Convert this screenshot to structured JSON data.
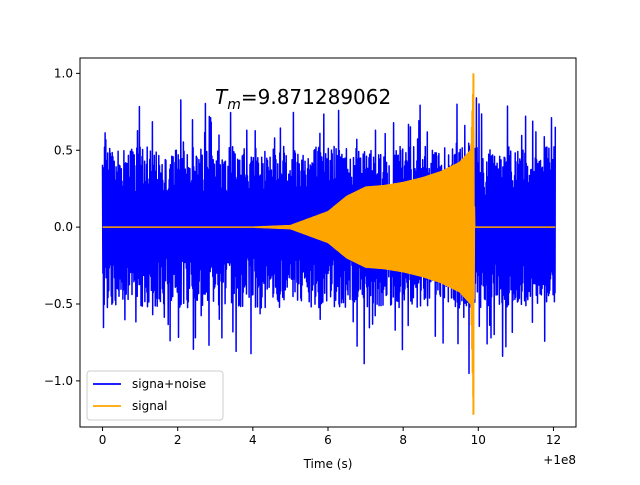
{
  "chart_data": {
    "type": "line",
    "title": "",
    "annotation": {
      "symbol": "T",
      "subscript": "m",
      "text": "=9.871289062"
    },
    "xlabel": "Time (s)",
    "ylabel": "",
    "x_offset_label": "+1e8",
    "xlim": [
      -0.6,
      12.6
    ],
    "ylim": [
      -1.3,
      1.1
    ],
    "x_ticks": [
      0,
      2,
      4,
      6,
      8,
      10,
      12
    ],
    "x_tick_labels": [
      "0",
      "2",
      "4",
      "6",
      "8",
      "10",
      "12"
    ],
    "y_ticks": [
      1.0,
      0.5,
      0.0,
      -0.5,
      -1.0
    ],
    "y_tick_labels": [
      "1.0",
      "0.5",
      "0.0",
      "−0.5",
      "−1.0"
    ],
    "grid": false,
    "legend": {
      "placement": "lower-left"
    },
    "series": [
      {
        "name": "signa+noise",
        "color": "#0000ff",
        "x_range": [
          0,
          12.05
        ],
        "envelope": {
          "x": [
            0,
            1,
            2,
            3,
            4,
            5,
            6,
            7,
            8,
            9,
            9.87,
            10,
            11,
            12.05
          ],
          "typical_max": [
            0.55,
            0.55,
            0.55,
            0.55,
            0.55,
            0.55,
            0.55,
            0.55,
            0.55,
            0.55,
            0.6,
            0.55,
            0.55,
            0.55
          ],
          "typical_min": [
            -0.55,
            -0.55,
            -0.55,
            -0.55,
            -0.55,
            -0.55,
            -0.55,
            -0.55,
            -0.55,
            -0.55,
            -0.6,
            -0.55,
            -0.55,
            -0.55
          ],
          "peak_max": [
            0.85,
            0.85,
            0.85,
            0.8,
            0.82,
            0.8,
            0.85,
            0.7,
            0.8,
            0.82,
            0.92,
            0.82,
            1.0,
            0.72
          ],
          "peak_min": [
            -0.7,
            -0.8,
            -0.82,
            -0.8,
            -0.85,
            -0.9,
            -0.96,
            -0.92,
            -0.9,
            -0.96,
            -0.95,
            -0.8,
            -0.9,
            -0.82
          ]
        }
      },
      {
        "name": "signal",
        "color": "#ffa500",
        "x_range": [
          0,
          12.05
        ],
        "envelope": {
          "x": [
            0,
            4,
            5,
            6,
            6.5,
            7,
            7.5,
            8,
            8.5,
            9,
            9.5,
            9.8,
            9.87,
            9.9,
            12.05
          ],
          "upper": [
            0,
            0,
            0.01,
            0.1,
            0.2,
            0.26,
            0.27,
            0.29,
            0.32,
            0.36,
            0.42,
            0.5,
            1.0,
            0,
            0
          ],
          "lower": [
            0,
            0,
            -0.01,
            -0.1,
            -0.2,
            -0.26,
            -0.27,
            -0.29,
            -0.32,
            -0.36,
            -0.42,
            -0.5,
            -1.22,
            0,
            0
          ]
        }
      }
    ]
  }
}
